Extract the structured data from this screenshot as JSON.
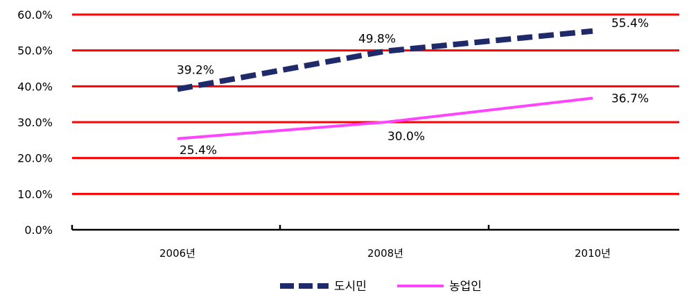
{
  "chart_data": {
    "type": "line",
    "categories": [
      "2006년",
      "2008년",
      "2010년"
    ],
    "series": [
      {
        "name": "도시민",
        "values": [
          39.2,
          49.8,
          55.4
        ],
        "labels": [
          "39.2%",
          "49.8%",
          "55.4%"
        ],
        "color": "#1f2a6b",
        "style": "dashed"
      },
      {
        "name": "농업인",
        "values": [
          25.4,
          30.0,
          36.7
        ],
        "labels": [
          "25.4%",
          "30.0%",
          "36.7%"
        ],
        "color": "#ff44ff",
        "style": "solid"
      }
    ],
    "y_ticks": [
      "0.0%",
      "10.0%",
      "20.0%",
      "30.0%",
      "40.0%",
      "50.0%",
      "60.0%"
    ],
    "ylim": [
      0,
      60
    ],
    "grid": true,
    "grid_color": "#ff0000",
    "legend_position": "bottom-center",
    "title": "",
    "xlabel": "",
    "ylabel": ""
  }
}
